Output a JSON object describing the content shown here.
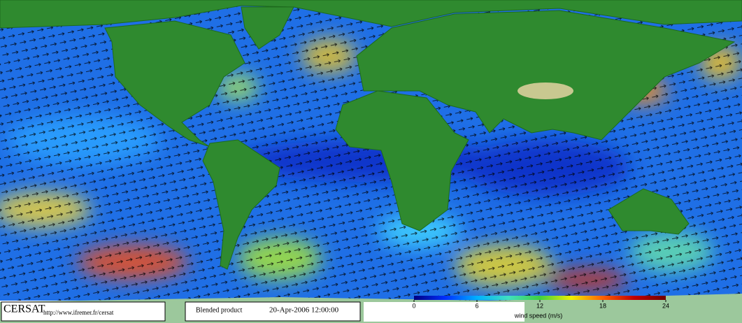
{
  "footer": {
    "logo": "CERSAT",
    "url": "http://www.ifremer.fr/cersat",
    "product": "Blended product",
    "date": "20-Apr-2006 12:00:00"
  },
  "colorbar": {
    "label": "wind speed (m/s)",
    "lim": [
      0,
      24
    ],
    "ticks": [
      0,
      6,
      12,
      18,
      24
    ],
    "colors": [
      "#000080",
      "#0030ff",
      "#00b0ff",
      "#40e0c0",
      "#40d040",
      "#f0f000",
      "#ff6000",
      "#c00000",
      "#700000"
    ]
  }
}
